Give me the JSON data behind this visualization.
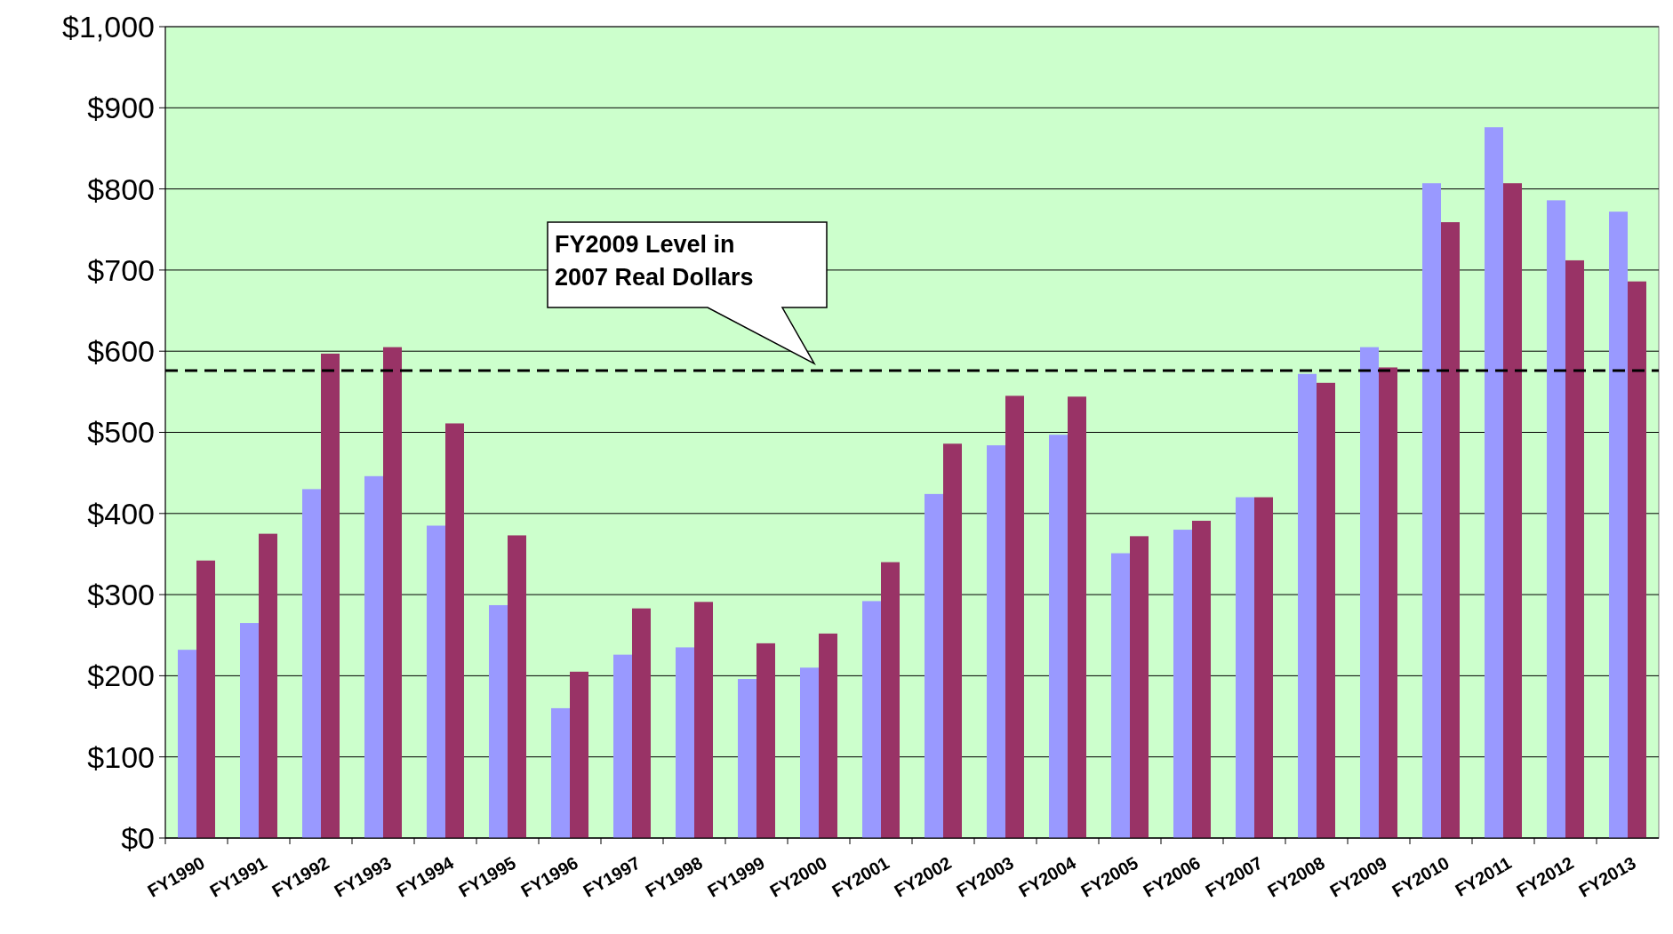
{
  "chart_data": {
    "type": "bar",
    "categories": [
      "FY1990",
      "FY1991",
      "FY1992",
      "FY1993",
      "FY1994",
      "FY1995",
      "FY1996",
      "FY1997",
      "FY1998",
      "FY1999",
      "FY2000",
      "FY2001",
      "FY2002",
      "FY2003",
      "FY2004",
      "FY2005",
      "FY2006",
      "FY2007",
      "FY2008",
      "FY2009",
      "FY2010",
      "FY2011",
      "FY2012",
      "FY2013"
    ],
    "series": [
      {
        "color": "#9999ff",
        "values": [
          232,
          265,
          430,
          446,
          385,
          287,
          160,
          226,
          235,
          196,
          210,
          292,
          424,
          484,
          497,
          351,
          380,
          420,
          572,
          605,
          807,
          876,
          786,
          772
        ]
      },
      {
        "color": "#993366",
        "values": [
          342,
          375,
          597,
          605,
          511,
          373,
          205,
          283,
          291,
          240,
          252,
          340,
          486,
          545,
          544,
          372,
          391,
          420,
          561,
          580,
          759,
          807,
          712,
          686
        ]
      }
    ],
    "ylim": [
      0,
      1000
    ],
    "yticks": [
      {
        "value": 0,
        "label": "$0"
      },
      {
        "value": 100,
        "label": "$100"
      },
      {
        "value": 200,
        "label": "$200"
      },
      {
        "value": 300,
        "label": "$300"
      },
      {
        "value": 400,
        "label": "$400"
      },
      {
        "value": 500,
        "label": "$500"
      },
      {
        "value": 600,
        "label": "$600"
      },
      {
        "value": 700,
        "label": "$700"
      },
      {
        "value": 800,
        "label": "$800"
      },
      {
        "value": 900,
        "label": "$900"
      },
      {
        "value": 1000,
        "label": "$1,000"
      }
    ],
    "grid": "y",
    "ref_lines": [
      {
        "axis": "y",
        "value": 576,
        "label": "FY2009 Level in\n2007 Real Dollars",
        "color": "#000000",
        "line_style": "dashed"
      }
    ]
  }
}
